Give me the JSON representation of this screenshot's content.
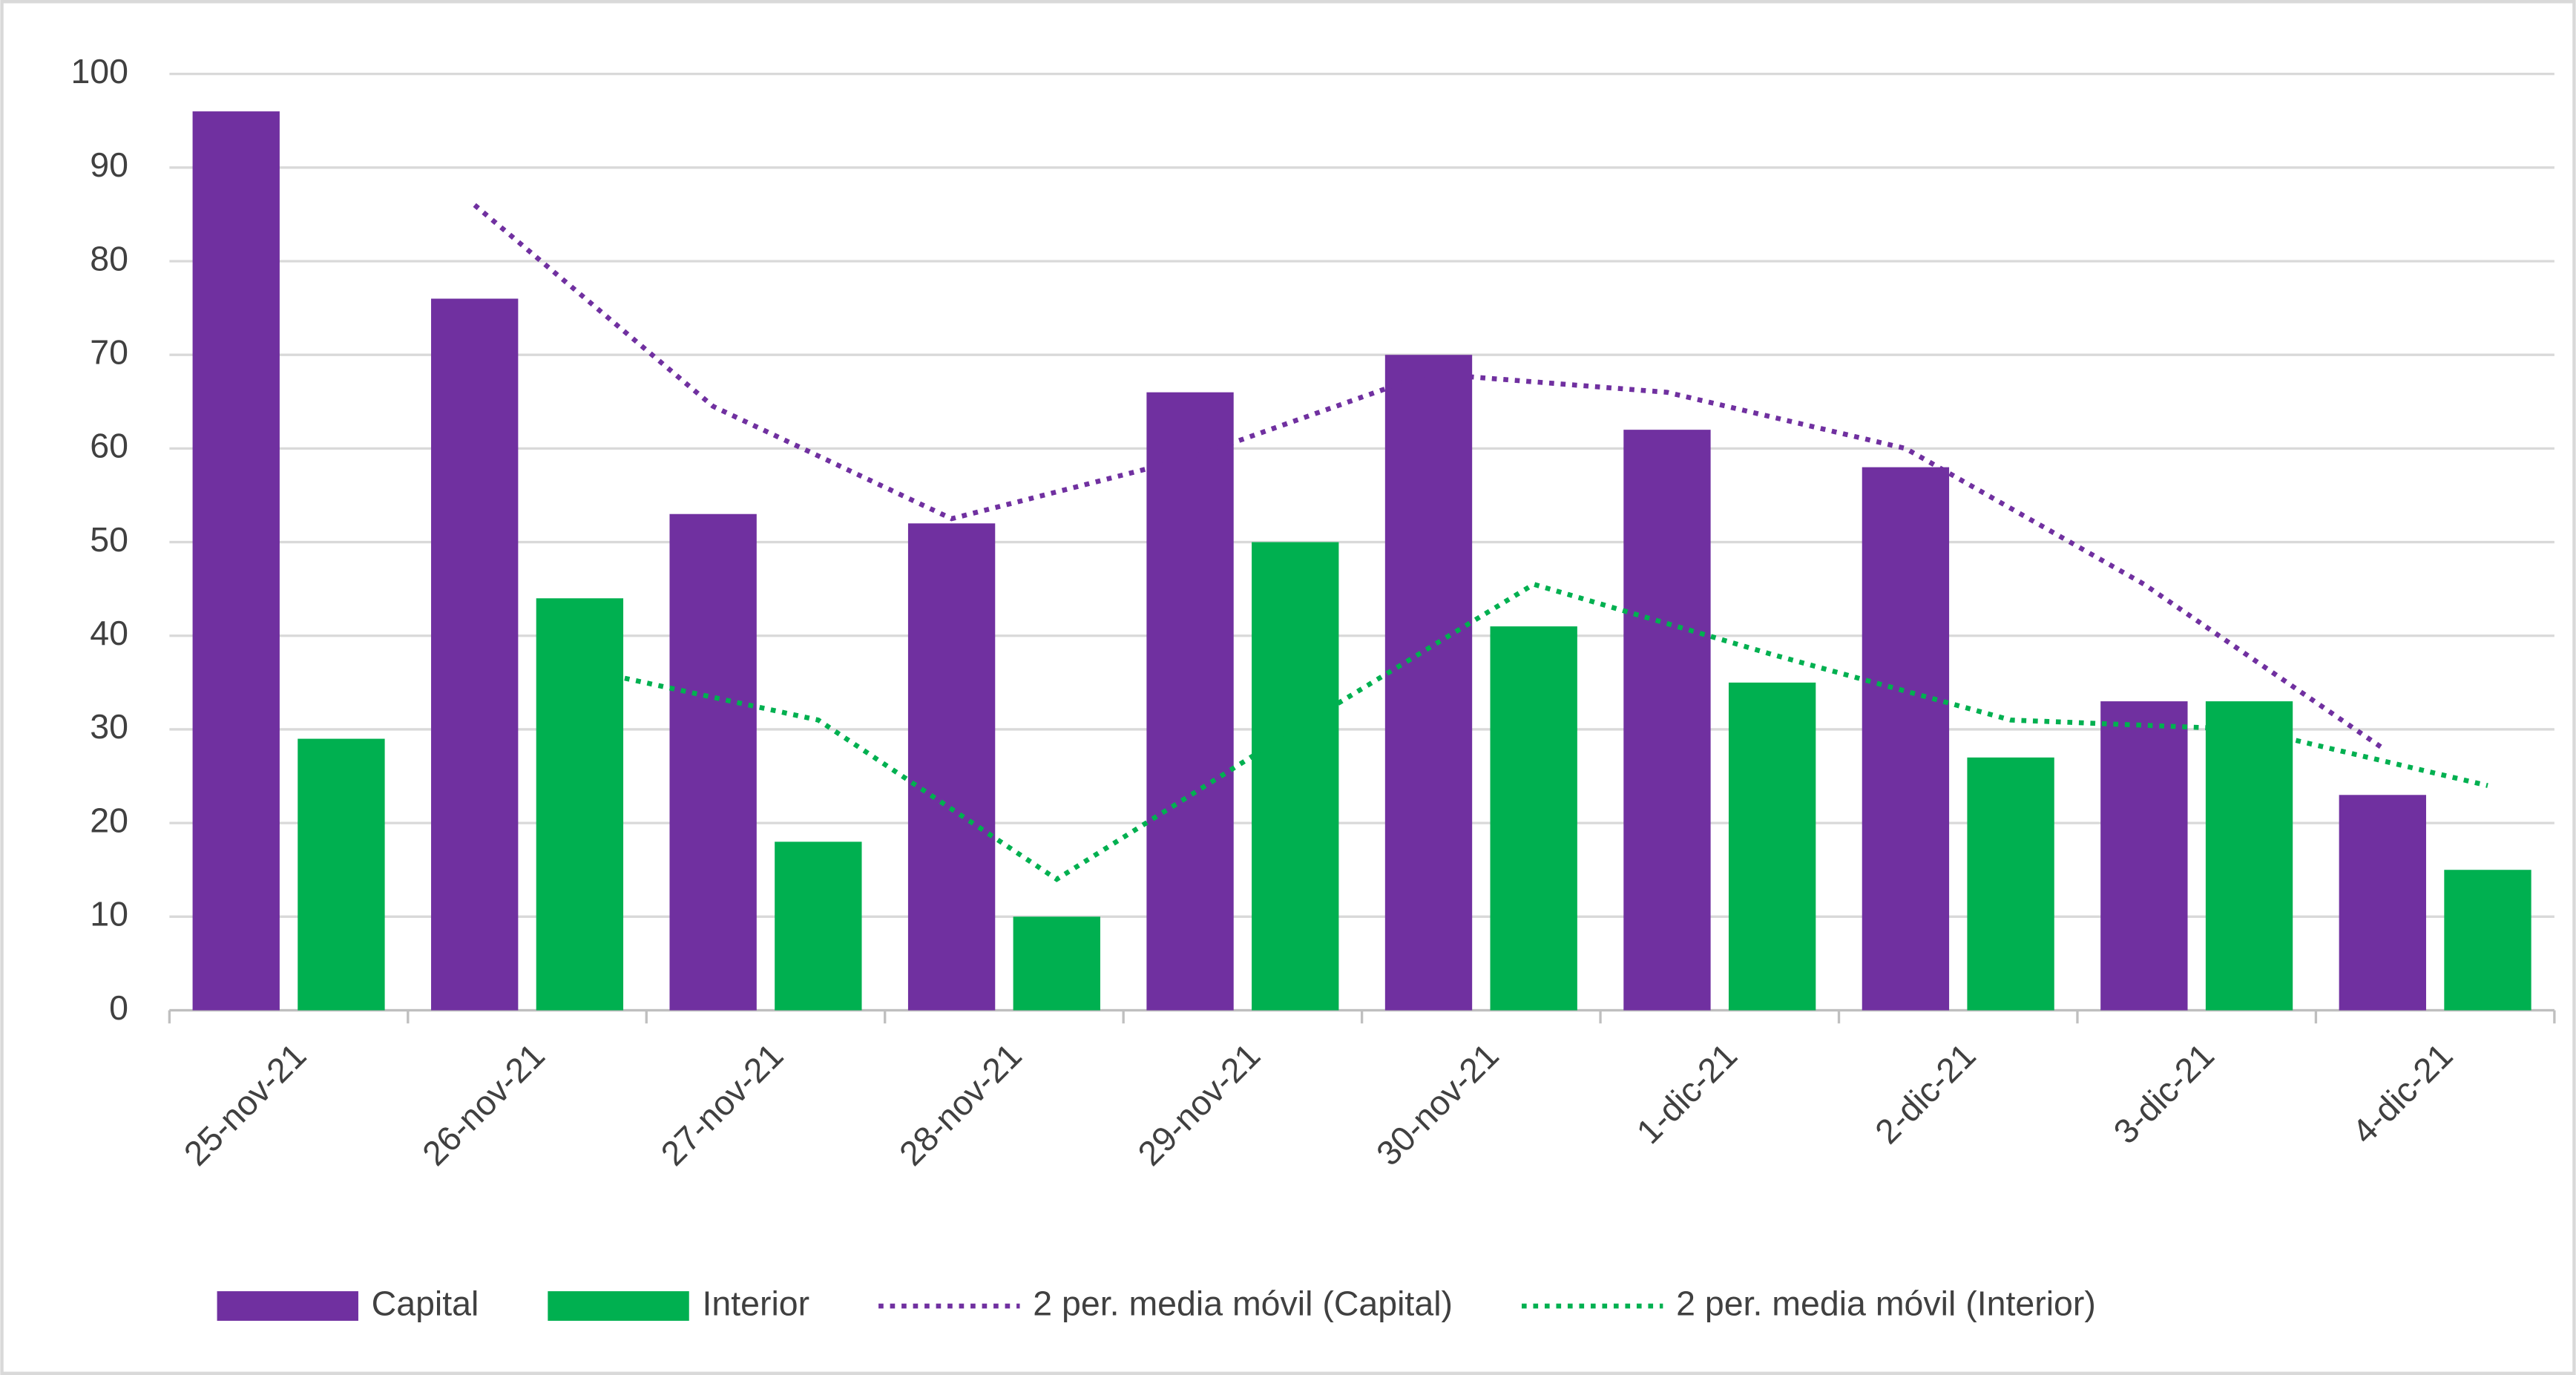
{
  "chart_data": {
    "type": "bar",
    "categories": [
      "25-nov-21",
      "26-nov-21",
      "27-nov-21",
      "28-nov-21",
      "29-nov-21",
      "30-nov-21",
      "1-dic-21",
      "2-dic-21",
      "3-dic-21",
      "4-dic-21"
    ],
    "series": [
      {
        "name": "Capital",
        "type": "bar",
        "color": "#7030a0",
        "values": [
          96,
          76,
          53,
          52,
          66,
          70,
          62,
          58,
          33,
          23
        ]
      },
      {
        "name": "Interior",
        "type": "bar",
        "color": "#00b050",
        "values": [
          29,
          44,
          18,
          10,
          50,
          41,
          35,
          27,
          33,
          15
        ]
      },
      {
        "name": "2 per. media móvil (Capital)",
        "type": "line",
        "dashed": true,
        "color": "#7030a0",
        "follows": 0,
        "values": [
          null,
          86,
          64.5,
          52.5,
          59,
          68,
          66,
          60,
          45.5,
          28
        ]
      },
      {
        "name": "2 per. media móvil (Interior)",
        "type": "line",
        "dashed": true,
        "color": "#00b050",
        "follows": 1,
        "values": [
          null,
          36.5,
          31,
          14,
          30,
          45.5,
          38,
          31,
          30,
          24
        ]
      }
    ],
    "ylim": [
      0,
      100
    ],
    "yticks": [
      0,
      10,
      20,
      30,
      40,
      50,
      60,
      70,
      80,
      90,
      100
    ],
    "grid": true,
    "legend": "bottom"
  }
}
